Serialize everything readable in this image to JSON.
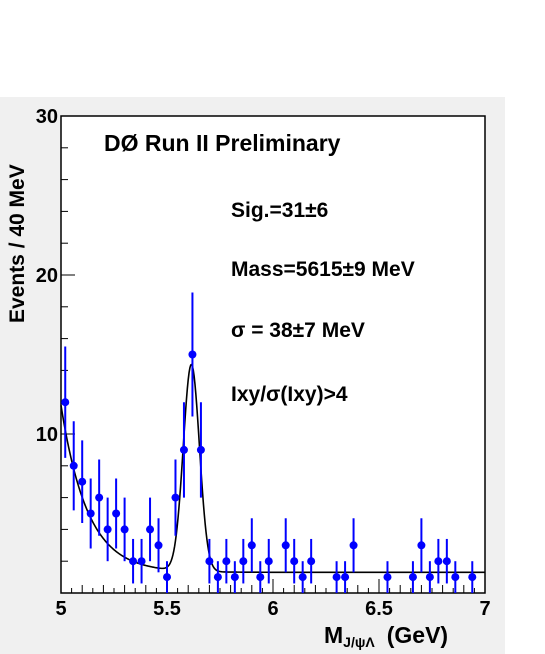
{
  "chart_data": {
    "type": "scatter",
    "title": "DØ Run II Preliminary",
    "xlabel_main": "M",
    "xlabel_sub": "J/ψΛ",
    "xlabel_unit": "(GeV)",
    "ylabel": "Events / 40  MeV",
    "xlim": [
      5.0,
      7.0
    ],
    "ylim": [
      0,
      30
    ],
    "x_ticks": [
      "5",
      "5.5",
      "6",
      "6.5",
      "7"
    ],
    "y_ticks": [
      "10",
      "20",
      "30"
    ],
    "annotations": [
      "Sig.=31±6",
      "Mass=5615±9 MeV",
      "σ = 38±7 MeV",
      "Ixy/σ(Ixy)>4"
    ],
    "colors": {
      "points": "#0000ff",
      "fit": "#000000"
    },
    "points": [
      {
        "x": 5.02,
        "y": 12,
        "err": 3.5
      },
      {
        "x": 5.06,
        "y": 8,
        "err": 2.8
      },
      {
        "x": 5.1,
        "y": 7,
        "err": 2.6
      },
      {
        "x": 5.14,
        "y": 5,
        "err": 2.2
      },
      {
        "x": 5.18,
        "y": 6,
        "err": 2.4
      },
      {
        "x": 5.22,
        "y": 4,
        "err": 2.0
      },
      {
        "x": 5.26,
        "y": 5,
        "err": 2.2
      },
      {
        "x": 5.3,
        "y": 4,
        "err": 2.0
      },
      {
        "x": 5.34,
        "y": 2,
        "err": 1.4
      },
      {
        "x": 5.38,
        "y": 2,
        "err": 1.4
      },
      {
        "x": 5.42,
        "y": 4,
        "err": 2.0
      },
      {
        "x": 5.46,
        "y": 3,
        "err": 1.7
      },
      {
        "x": 5.5,
        "y": 1,
        "err": 1.0
      },
      {
        "x": 5.54,
        "y": 6,
        "err": 2.4
      },
      {
        "x": 5.58,
        "y": 9,
        "err": 3.0
      },
      {
        "x": 5.62,
        "y": 15,
        "err": 3.9
      },
      {
        "x": 5.66,
        "y": 9,
        "err": 3.0
      },
      {
        "x": 5.7,
        "y": 2,
        "err": 1.4
      },
      {
        "x": 5.74,
        "y": 1,
        "err": 1.0
      },
      {
        "x": 5.78,
        "y": 2,
        "err": 1.4
      },
      {
        "x": 5.82,
        "y": 1,
        "err": 1.0
      },
      {
        "x": 5.86,
        "y": 2,
        "err": 1.4
      },
      {
        "x": 5.9,
        "y": 3,
        "err": 1.7
      },
      {
        "x": 5.94,
        "y": 1,
        "err": 1.0
      },
      {
        "x": 5.98,
        "y": 2,
        "err": 1.4
      },
      {
        "x": 6.06,
        "y": 3,
        "err": 1.7
      },
      {
        "x": 6.1,
        "y": 2,
        "err": 1.4
      },
      {
        "x": 6.14,
        "y": 1,
        "err": 1.0
      },
      {
        "x": 6.18,
        "y": 2,
        "err": 1.4
      },
      {
        "x": 6.3,
        "y": 1,
        "err": 1.0
      },
      {
        "x": 6.34,
        "y": 1,
        "err": 1.0
      },
      {
        "x": 6.38,
        "y": 3,
        "err": 1.7
      },
      {
        "x": 6.54,
        "y": 1,
        "err": 1.0
      },
      {
        "x": 6.66,
        "y": 1,
        "err": 1.0
      },
      {
        "x": 6.7,
        "y": 3,
        "err": 1.7
      },
      {
        "x": 6.74,
        "y": 1,
        "err": 1.0
      },
      {
        "x": 6.78,
        "y": 2,
        "err": 1.4
      },
      {
        "x": 6.82,
        "y": 2,
        "err": 1.4
      },
      {
        "x": 6.86,
        "y": 1,
        "err": 1.0
      },
      {
        "x": 6.94,
        "y": 1,
        "err": 1.0
      }
    ],
    "fit": {
      "mean": 5.615,
      "sigma": 0.038,
      "signal_amplitude": 13.0,
      "background_constant": 1.3,
      "background_amplitude": 10.5,
      "background_slope": 8.0
    }
  }
}
